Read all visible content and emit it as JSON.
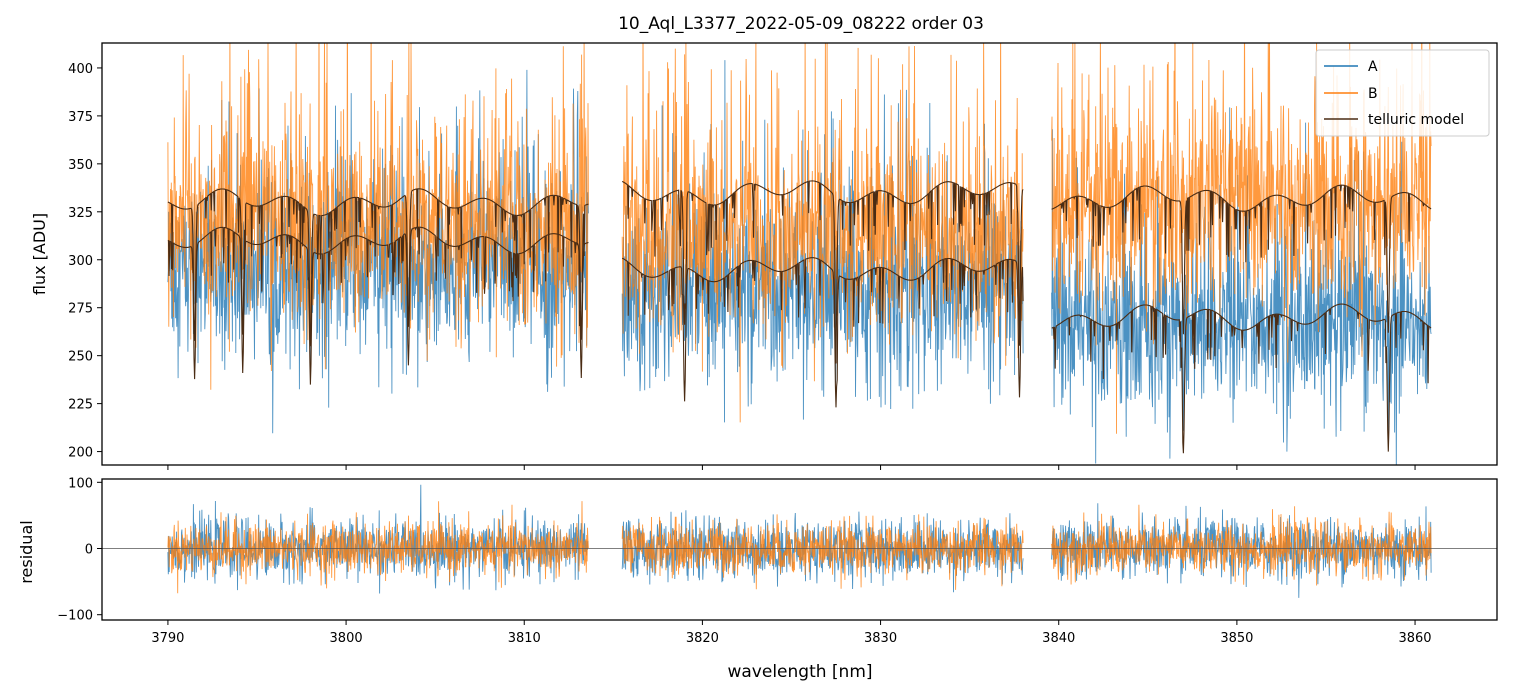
{
  "chart_data": [
    {
      "type": "line",
      "title": "10_Aql_L3377_2022-05-09_08222  order 03",
      "xlabel": "",
      "ylabel": "flux [ADU]",
      "xlim": [
        3786.3,
        3864.6
      ],
      "ylim": [
        193,
        413
      ],
      "y_ticks": [
        200,
        225,
        250,
        275,
        300,
        325,
        350,
        375,
        400
      ],
      "y_tick_labels": [
        "200",
        "225",
        "250",
        "275",
        "300",
        "325",
        "350",
        "375",
        "400"
      ],
      "x_ticks": [
        3790,
        3800,
        3810,
        3820,
        3830,
        3840,
        3850,
        3860
      ],
      "grid": false,
      "legend_position": "top-right",
      "legend": [
        "A",
        "B",
        "telluric model"
      ],
      "segments": [
        [
          3790.0,
          3813.6
        ],
        [
          3815.5,
          3838.0
        ],
        [
          3839.6,
          3860.9
        ]
      ],
      "series": [
        {
          "name": "A",
          "color": "#1f77b4",
          "level": [
            295,
            280,
            265
          ],
          "noise": 48
        },
        {
          "name": "B",
          "color": "#ff7f0e",
          "level": [
            318,
            312,
            328
          ],
          "noise": 55
        },
        {
          "name": "telluric model",
          "color": "#4a2c14",
          "levels_upper": [
            330,
            335,
            332
          ],
          "levels_lower": [
            310,
            295,
            270
          ],
          "absorption_lines": [
            3791.5,
            3794.2,
            3798.0,
            3803.5,
            3813.2,
            3819.0,
            3827.5,
            3837.8,
            3847.0,
            3858.5
          ]
        }
      ]
    },
    {
      "type": "line",
      "title": "",
      "xlabel": "wavelength [nm]",
      "ylabel": "residual",
      "xlim": [
        3786.3,
        3864.6
      ],
      "ylim": [
        -108,
        105
      ],
      "y_ticks": [
        -100,
        0,
        100
      ],
      "y_tick_labels": [
        "−100",
        "0",
        "100"
      ],
      "x_ticks": [
        3790,
        3800,
        3810,
        3820,
        3830,
        3840,
        3850,
        3860
      ],
      "x_tick_labels": [
        "3790",
        "3800",
        "3810",
        "3820",
        "3830",
        "3840",
        "3850",
        "3860"
      ],
      "grid": false,
      "zero_line": true,
      "segments": [
        [
          3790.0,
          3813.6
        ],
        [
          3815.5,
          3838.0
        ],
        [
          3839.6,
          3860.9
        ]
      ],
      "series": [
        {
          "name": "A",
          "color": "#1f77b4",
          "level": 0,
          "noise": 45
        },
        {
          "name": "B",
          "color": "#ff7f0e",
          "level": 0,
          "noise": 40
        }
      ]
    }
  ]
}
